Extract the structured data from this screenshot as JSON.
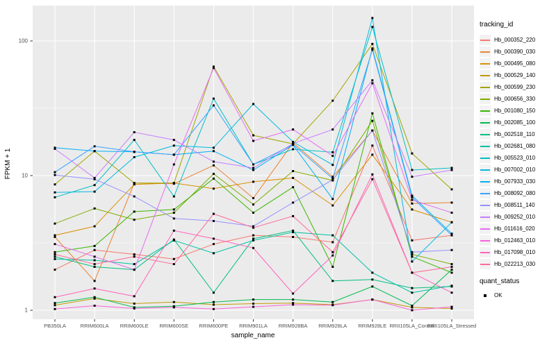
{
  "figure": {
    "xlabel": "sample_name",
    "ylabel": "FPKM + 1"
  },
  "legend": {
    "title": "tracking_id"
  },
  "legend2": {
    "title": "quant_status",
    "ok_label": "OK"
  },
  "colors": {
    "panel_bg": "#EBEBEB",
    "gridline": "#FFFFFF",
    "tick_text": "#4D4D4D",
    "axis_title_text": "#000000",
    "point": "#000000",
    "legend_key_bg": "#F2F2F2"
  },
  "chart_data": {
    "type": "line",
    "title": "",
    "xlabel": "sample_name",
    "ylabel": "FPKM + 1",
    "y_scale": "log10",
    "y_ticks": [
      1,
      10,
      100
    ],
    "ylim": [
      0.95,
      190
    ],
    "grid": true,
    "legend_position": "right",
    "point_marker": "small-black-square",
    "quant_status_value": "OK",
    "categories": [
      "PB350LA",
      "RRIM600LA",
      "RRIM600LE",
      "RRIM600SE",
      "RRIM600PE",
      "RRIM901LA",
      "RRIM928BA",
      "RRIM928LA",
      "RRIM928LE",
      "RRII105LA_Control",
      "RRII105LA_Stressed"
    ],
    "series": [
      {
        "name": "Hb_000352_220",
        "color": "#F8766D",
        "values": [
          2.0,
          2.8,
          2.6,
          2.4,
          3.1,
          3.6,
          3.5,
          3.2,
          16.7,
          3.3,
          3.6
        ]
      },
      {
        "name": "Hb_000390_030",
        "color": "#EA8331",
        "values": [
          3.5,
          1.65,
          8.8,
          8.7,
          11.9,
          6.8,
          17.5,
          9.8,
          21.6,
          6.2,
          6.3
        ]
      },
      {
        "name": "Hb_000495_080",
        "color": "#D89000",
        "values": [
          3.6,
          4.2,
          8.6,
          8.8,
          8.0,
          9.0,
          9.6,
          6.0,
          14.3,
          5.6,
          4.5
        ]
      },
      {
        "name": "Hb_000529_140",
        "color": "#C09B00",
        "values": [
          1.09,
          1.22,
          1.12,
          1.15,
          1.1,
          1.12,
          1.13,
          1.1,
          1.2,
          1.05,
          1.03
        ]
      },
      {
        "name": "Hb_000599_230",
        "color": "#A3A500",
        "values": [
          8.6,
          15.2,
          8.8,
          8.8,
          64.5,
          19.9,
          17.2,
          36.0,
          95.0,
          14.6,
          7.9
        ]
      },
      {
        "name": "Hb_000656_330",
        "color": "#7CAE00",
        "values": [
          4.4,
          5.7,
          4.7,
          5.3,
          10.3,
          6.1,
          10.8,
          9.2,
          25.5,
          2.6,
          2.2
        ]
      },
      {
        "name": "Hb_001080_150",
        "color": "#39B600",
        "values": [
          2.7,
          3.0,
          5.4,
          5.6,
          9.5,
          5.3,
          8.2,
          2.1,
          29.0,
          2.5,
          1.9
        ]
      },
      {
        "name": "Hb_002085_100",
        "color": "#00BB4E",
        "values": [
          1.13,
          1.25,
          1.05,
          1.07,
          1.15,
          1.2,
          1.2,
          1.15,
          1.5,
          1.08,
          2.0
        ]
      },
      {
        "name": "Hb_002518_110",
        "color": "#00BF7D",
        "values": [
          2.5,
          2.1,
          2.0,
          3.35,
          1.35,
          3.4,
          3.9,
          1.65,
          1.69,
          1.46,
          1.5
        ]
      },
      {
        "name": "Hb_002681_080",
        "color": "#00C1A3",
        "values": [
          2.4,
          2.35,
          2.2,
          3.3,
          2.65,
          3.3,
          3.8,
          3.6,
          1.9,
          1.35,
          1.52
        ]
      },
      {
        "name": "Hb_005523_010",
        "color": "#00BFC4",
        "values": [
          6.9,
          8.5,
          18.4,
          7.0,
          37.3,
          12.1,
          15.7,
          14.9,
          127.0,
          11.0,
          11.4
        ]
      },
      {
        "name": "Hb_007002_010",
        "color": "#00BAE0",
        "values": [
          7.5,
          7.6,
          13.7,
          16.7,
          16.1,
          34.0,
          17.8,
          12.0,
          148.0,
          2.3,
          4.5
        ]
      },
      {
        "name": "Hb_007933_030",
        "color": "#00B0F6",
        "values": [
          16.1,
          15.2,
          15.0,
          14.3,
          15.2,
          11.0,
          16.9,
          6.7,
          88.0,
          7.1,
          3.7
        ]
      },
      {
        "name": "Hb_008092_080",
        "color": "#35A2FF",
        "values": [
          10.6,
          16.5,
          15.0,
          14.3,
          33.2,
          12.1,
          17.0,
          9.5,
          86.0,
          6.9,
          3.6
        ]
      },
      {
        "name": "Hb_008511_140",
        "color": "#9590FF",
        "values": [
          10.1,
          9.4,
          7.0,
          4.8,
          4.6,
          4.2,
          6.3,
          9.3,
          21.6,
          2.7,
          2.8
        ]
      },
      {
        "name": "Hb_009252_010",
        "color": "#C77CFF",
        "values": [
          15.8,
          9.6,
          21.0,
          18.4,
          12.7,
          11.4,
          17.3,
          22.0,
          51.0,
          9.8,
          11.0
        ]
      },
      {
        "name": "Hb_011616_020",
        "color": "#E76BF3",
        "values": [
          3.1,
          2.5,
          2.0,
          12.1,
          63.0,
          18.1,
          22.0,
          14.0,
          48.5,
          6.6,
          5.3
        ]
      },
      {
        "name": "Hb_012463_010",
        "color": "#FA62DB",
        "values": [
          1.02,
          1.08,
          1.03,
          1.05,
          1.02,
          1.06,
          1.1,
          1.09,
          1.2,
          1.0,
          1.06
        ]
      },
      {
        "name": "Hb_017098_010",
        "color": "#FF62BC",
        "values": [
          1.25,
          1.45,
          1.27,
          3.9,
          3.4,
          2.9,
          1.33,
          2.55,
          10.2,
          1.9,
          1.35
        ]
      },
      {
        "name": "Hb_022213_030",
        "color": "#FF6A98",
        "values": [
          2.6,
          2.2,
          2.5,
          2.2,
          5.2,
          4.1,
          5.0,
          2.7,
          9.4,
          1.9,
          2.1
        ]
      }
    ]
  }
}
